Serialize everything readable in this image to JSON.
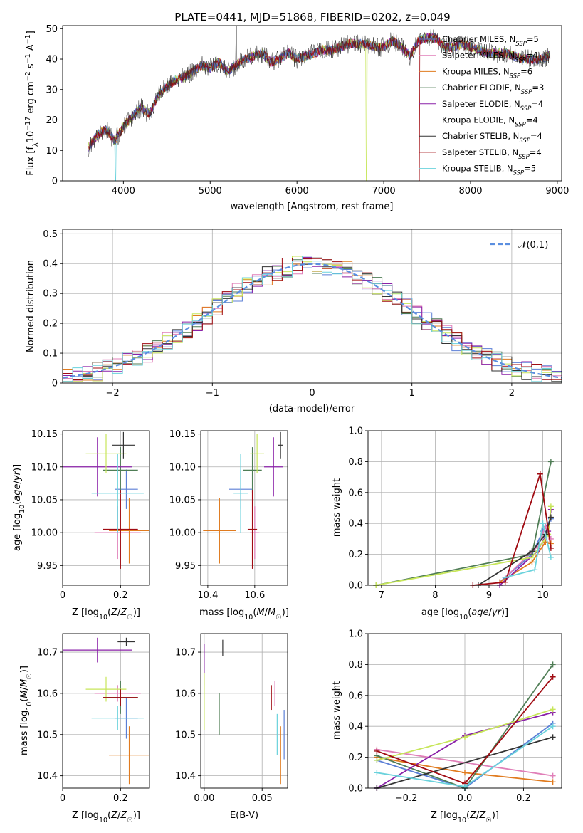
{
  "figure_title": "PLATE=0441, MJD=51868, FIBERID=0202, z=0.049",
  "colors": {
    "Chabrier MILES": "#5b7fd6",
    "Salpeter MILES": "#e07fb8",
    "Kroupa MILES": "#e07b1f",
    "Chabrier ELODIE": "#4f7d55",
    "Salpeter ELODIE": "#8a21a8",
    "Kroupa ELODIE": "#c7e65a",
    "Chabrier STELIB": "#333333",
    "Salpeter STELIB": "#a00b12",
    "Kroupa STELIB": "#6ad2dc",
    "normal": "#5b8fe0"
  },
  "chart_data": [
    {
      "id": "spectrum",
      "type": "line",
      "xlabel": "wavelength [Angstrom, rest frame]",
      "ylabel": "Flux [f_λ 10^-17 erg cm^-2 s^-1 A^-1]",
      "xlim": [
        3300,
        9050
      ],
      "ylim": [
        0,
        51
      ],
      "xticks": [
        4000,
        5000,
        6000,
        7000,
        8000,
        9000
      ],
      "yticks": [
        0,
        10,
        20,
        30,
        40,
        50
      ],
      "grid": false,
      "legend_position": "right",
      "legend": [
        {
          "base": "Chabrier MILES, N",
          "sub": "SSP",
          "tail": "=5"
        },
        {
          "base": "Salpeter MILES, N",
          "sub": "SSP",
          "tail": "=4"
        },
        {
          "base": "Kroupa MILES, N",
          "sub": "SSP",
          "tail": "=6"
        },
        {
          "base": "Chabrier ELODIE, N",
          "sub": "SSP",
          "tail": "=3"
        },
        {
          "base": "Salpeter ELODIE, N",
          "sub": "SSP",
          "tail": "=4"
        },
        {
          "base": "Kroupa ELODIE, N",
          "sub": "SSP",
          "tail": "=4"
        },
        {
          "base": "Chabrier STELIB, N",
          "sub": "SSP",
          "tail": "=4"
        },
        {
          "base": "Salpeter STELIB, N",
          "sub": "SSP",
          "tail": "=4"
        },
        {
          "base": "Kroupa STELIB, N",
          "sub": "SSP",
          "tail": "=5"
        }
      ],
      "continuum": {
        "x": [
          3600,
          3700,
          3800,
          3900,
          4000,
          4100,
          4200,
          4300,
          4400,
          4500,
          4600,
          4700,
          4800,
          4900,
          5000,
          5100,
          5200,
          5300,
          5400,
          5500,
          5600,
          5700,
          5800,
          5900,
          6000,
          6100,
          6200,
          6300,
          6400,
          6500,
          6600,
          6700,
          6800,
          6900,
          7000,
          7100,
          7200,
          7300,
          7400,
          7500,
          7600,
          7700,
          7800,
          7900,
          8000,
          8100,
          8200,
          8300,
          8400,
          8500,
          8600,
          8700,
          8800,
          8900
        ],
        "y": [
          11,
          15,
          17,
          13,
          18,
          21,
          24,
          22,
          28,
          31,
          33,
          34,
          36,
          38,
          37,
          39,
          36,
          38,
          40,
          41,
          42,
          39,
          40,
          42,
          40,
          41,
          42,
          43,
          43,
          44,
          45,
          45,
          45,
          44,
          44,
          46,
          44,
          41,
          46,
          47,
          47,
          44,
          44,
          45,
          44,
          43,
          42,
          42,
          42,
          41,
          40,
          40,
          40,
          41
        ]
      },
      "model_drop_wavelengths": [
        3910,
        6800,
        7410
      ]
    },
    {
      "id": "residuals",
      "type": "histogram",
      "xlabel": "(data-model)/error",
      "ylabel": "Normed distribution",
      "xlim": [
        -2.5,
        2.5
      ],
      "ylim": [
        0,
        0.515
      ],
      "xticks": [
        -2,
        -1,
        0,
        1,
        2
      ],
      "xtick_labels": [
        "−2",
        "−1",
        "0",
        "1",
        "2"
      ],
      "yticks": [
        0,
        0.1,
        0.2,
        0.3,
        0.4,
        0.5
      ],
      "grid": true,
      "bin_width": 0.1,
      "legend": [
        {
          "label": "𝒩(0,1)",
          "style": "dashed"
        }
      ],
      "legend_position": "top-right"
    },
    {
      "id": "age-vs-Z",
      "type": "errorbar",
      "xlabel": "Z [log10(Z/Z☉)]",
      "ylabel": "age [log10(age/yr)]",
      "xlim": [
        0,
        0.3
      ],
      "ylim": [
        9.92,
        10.155
      ],
      "xticks": [
        0,
        0.2
      ],
      "yticks": [
        9.95,
        10.0,
        10.05,
        10.1,
        10.15
      ],
      "grid": true,
      "points": [
        {
          "model": "Chabrier MILES",
          "x": 0.22,
          "xerr": 0.04,
          "y": 10.066,
          "yerr": 0.03
        },
        {
          "model": "Salpeter MILES",
          "x": 0.19,
          "xerr": 0.08,
          "y": 10.0,
          "yerr": 0.04
        },
        {
          "model": "Kroupa MILES",
          "x": 0.23,
          "xerr": 0.07,
          "y": 10.003,
          "yerr": 0.05
        },
        {
          "model": "Chabrier ELODIE",
          "x": 0.2,
          "xerr": 0.06,
          "y": 10.095,
          "yerr": 0.035
        },
        {
          "model": "Salpeter ELODIE",
          "x": 0.12,
          "xerr": 0.12,
          "y": 10.1,
          "yerr": 0.045
        },
        {
          "model": "Kroupa ELODIE",
          "x": 0.15,
          "xerr": 0.07,
          "y": 10.12,
          "yerr": 0.03
        },
        {
          "model": "Chabrier STELIB",
          "x": 0.21,
          "xerr": 0.04,
          "y": 10.133,
          "yerr": 0.02
        },
        {
          "model": "Salpeter STELIB",
          "x": 0.2,
          "xerr": 0.06,
          "y": 10.005,
          "yerr": 0.06
        },
        {
          "model": "Kroupa STELIB",
          "x": 0.19,
          "xerr": 0.09,
          "y": 10.06,
          "yerr": 0.06
        }
      ]
    },
    {
      "id": "age-vs-mass",
      "type": "errorbar",
      "xlabel": "mass [log10(M/M☉)]",
      "ylabel": "",
      "xlim": [
        10.37,
        10.74
      ],
      "ylim": [
        9.92,
        10.155
      ],
      "xticks": [
        10.4,
        10.6
      ],
      "yticks": [
        9.95,
        10.0,
        10.05,
        10.1,
        10.15
      ],
      "grid": true,
      "points": [
        {
          "model": "Chabrier MILES",
          "x": 10.54,
          "xerr": 0.05,
          "y": 10.066,
          "yerr": 0.03
        },
        {
          "model": "Salpeter MILES",
          "x": 10.6,
          "xerr": 0.02,
          "y": 10.0,
          "yerr": 0.04
        },
        {
          "model": "Kroupa MILES",
          "x": 10.45,
          "xerr": 0.07,
          "y": 10.003,
          "yerr": 0.05
        },
        {
          "model": "Chabrier ELODIE",
          "x": 10.59,
          "xerr": 0.04,
          "y": 10.095,
          "yerr": 0.035
        },
        {
          "model": "Salpeter ELODIE",
          "x": 10.68,
          "xerr": 0.04,
          "y": 10.1,
          "yerr": 0.045
        },
        {
          "model": "Kroupa ELODIE",
          "x": 10.61,
          "xerr": 0.03,
          "y": 10.12,
          "yerr": 0.03
        },
        {
          "model": "Chabrier STELIB",
          "x": 10.71,
          "xerr": 0.01,
          "y": 10.133,
          "yerr": 0.02
        },
        {
          "model": "Salpeter STELIB",
          "x": 10.59,
          "xerr": 0.02,
          "y": 10.005,
          "yerr": 0.06
        },
        {
          "model": "Kroupa STELIB",
          "x": 10.54,
          "xerr": 0.03,
          "y": 10.06,
          "yerr": 0.06
        }
      ]
    },
    {
      "id": "mass-weight-vs-age",
      "type": "line",
      "xlabel": "age [log10(age/yr)]",
      "ylabel": "mass weight",
      "xlim": [
        6.75,
        10.35
      ],
      "ylim": [
        0,
        1
      ],
      "xticks": [
        7,
        8,
        9,
        10
      ],
      "yticks": [
        0,
        0.2,
        0.4,
        0.6,
        0.8,
        1.0
      ],
      "grid": true,
      "series": [
        {
          "model": "Chabrier MILES",
          "x": [
            9.2,
            9.8,
            10.0,
            10.15
          ],
          "y": [
            0.02,
            0.2,
            0.35,
            0.43
          ]
        },
        {
          "model": "Salpeter MILES",
          "x": [
            9.3,
            9.9,
            10.05,
            10.15
          ],
          "y": [
            0.05,
            0.25,
            0.38,
            0.3
          ]
        },
        {
          "model": "Kroupa MILES",
          "x": [
            9.2,
            9.8,
            10.05,
            10.15
          ],
          "y": [
            0.02,
            0.15,
            0.28,
            0.27
          ]
        },
        {
          "model": "Chabrier ELODIE",
          "x": [
            6.9,
            9.8,
            10.15
          ],
          "y": [
            0.0,
            0.2,
            0.8
          ]
        },
        {
          "model": "Salpeter ELODIE",
          "x": [
            9.2,
            9.9,
            10.1,
            10.15
          ],
          "y": [
            0.0,
            0.22,
            0.35,
            0.49
          ]
        },
        {
          "model": "Kroupa ELODIE",
          "x": [
            6.9,
            9.8,
            10.1,
            10.15
          ],
          "y": [
            0.0,
            0.18,
            0.33,
            0.51
          ]
        },
        {
          "model": "Chabrier STELIB",
          "x": [
            8.8,
            9.8,
            10.05,
            10.15
          ],
          "y": [
            0.0,
            0.22,
            0.33,
            0.44
          ]
        },
        {
          "model": "Salpeter STELIB",
          "x": [
            8.7,
            9.3,
            9.95,
            10.15
          ],
          "y": [
            0.0,
            0.02,
            0.72,
            0.24
          ]
        },
        {
          "model": "Kroupa STELIB",
          "x": [
            9.3,
            9.85,
            10.0,
            10.15
          ],
          "y": [
            0.05,
            0.1,
            0.4,
            0.18
          ]
        }
      ]
    },
    {
      "id": "mass-vs-Z",
      "type": "errorbar",
      "xlabel": "Z [log10(Z/Z☉)]",
      "ylabel": "mass [log10(M/M☉)]",
      "xlim": [
        0,
        0.3
      ],
      "ylim": [
        10.37,
        10.745
      ],
      "xticks": [
        0,
        0.2
      ],
      "yticks": [
        10.4,
        10.5,
        10.6,
        10.7
      ],
      "grid": true,
      "points": [
        {
          "model": "Chabrier MILES",
          "x": 0.22,
          "xerr": 0.04,
          "y": 10.54,
          "yerr": 0.05
        },
        {
          "model": "Salpeter MILES",
          "x": 0.19,
          "xerr": 0.08,
          "y": 10.6,
          "yerr": 0.02
        },
        {
          "model": "Kroupa MILES",
          "x": 0.23,
          "xerr": 0.07,
          "y": 10.45,
          "yerr": 0.07
        },
        {
          "model": "Chabrier ELODIE",
          "x": 0.2,
          "xerr": 0.06,
          "y": 10.59,
          "yerr": 0.04
        },
        {
          "model": "Salpeter ELODIE",
          "x": 0.12,
          "xerr": 0.12,
          "y": 10.705,
          "yerr": 0.03
        },
        {
          "model": "Kroupa ELODIE",
          "x": 0.15,
          "xerr": 0.07,
          "y": 10.61,
          "yerr": 0.03
        },
        {
          "model": "Chabrier STELIB",
          "x": 0.22,
          "xerr": 0.03,
          "y": 10.725,
          "yerr": 0.01
        },
        {
          "model": "Salpeter STELIB",
          "x": 0.2,
          "xerr": 0.06,
          "y": 10.59,
          "yerr": 0.02
        },
        {
          "model": "Kroupa STELIB",
          "x": 0.19,
          "xerr": 0.09,
          "y": 10.54,
          "yerr": 0.03
        }
      ]
    },
    {
      "id": "mass-vs-ebv",
      "type": "errorbar",
      "xlabel": "E(B-V)",
      "ylabel": "",
      "xlim": [
        -0.003,
        0.072
      ],
      "ylim": [
        10.37,
        10.745
      ],
      "xticks": [
        0,
        0.05
      ],
      "xtick_labels": [
        "0.00",
        "0.05"
      ],
      "yticks": [
        10.4,
        10.5,
        10.6,
        10.7
      ],
      "grid": true,
      "points": [
        {
          "model": "Chabrier MILES",
          "x": 0.069,
          "xerr": 0,
          "y": 10.5,
          "yerr": 0.06
        },
        {
          "model": "Salpeter MILES",
          "x": 0.061,
          "xerr": 0,
          "y": 10.6,
          "yerr": 0.03
        },
        {
          "model": "Kroupa MILES",
          "x": 0.066,
          "xerr": 0,
          "y": 10.45,
          "yerr": 0.07
        },
        {
          "model": "Chabrier ELODIE",
          "x": 0.013,
          "xerr": 0,
          "y": 10.55,
          "yerr": 0.05
        },
        {
          "model": "Salpeter ELODIE",
          "x": 0.0,
          "xerr": 0,
          "y": 10.67,
          "yerr": 0.05
        },
        {
          "model": "Kroupa ELODIE",
          "x": 0.0,
          "xerr": 0,
          "y": 10.58,
          "yerr": 0.07
        },
        {
          "model": "Chabrier STELIB",
          "x": 0.016,
          "xerr": 0,
          "y": 10.71,
          "yerr": 0.02
        },
        {
          "model": "Salpeter STELIB",
          "x": 0.058,
          "xerr": 0,
          "y": 10.59,
          "yerr": 0.03
        },
        {
          "model": "Kroupa STELIB",
          "x": 0.063,
          "xerr": 0,
          "y": 10.5,
          "yerr": 0.05
        }
      ]
    },
    {
      "id": "mass-weight-vs-Z",
      "type": "line",
      "xlabel": "Z [log10(Z/Z☉)]",
      "ylabel": "mass weight",
      "xlim": [
        -0.33,
        0.33
      ],
      "ylim": [
        0,
        1
      ],
      "xticks": [
        -0.2,
        0.0,
        0.2
      ],
      "xtick_labels": [
        "−0.2",
        "0.0",
        "0.2"
      ],
      "yticks": [
        0,
        0.2,
        0.4,
        0.6,
        0.8,
        1.0
      ],
      "grid": true,
      "series": [
        {
          "model": "Chabrier MILES",
          "x": [
            -0.3,
            0.0,
            0.3
          ],
          "y": [
            0.18,
            0.0,
            0.42
          ]
        },
        {
          "model": "Salpeter MILES",
          "x": [
            -0.3,
            0.3
          ],
          "y": [
            0.25,
            0.08
          ]
        },
        {
          "model": "Kroupa MILES",
          "x": [
            -0.3,
            0.0,
            0.3
          ],
          "y": [
            0.2,
            0.1,
            0.04
          ]
        },
        {
          "model": "Chabrier ELODIE",
          "x": [
            -0.3,
            0.0,
            0.3
          ],
          "y": [
            0.21,
            0.0,
            0.8
          ]
        },
        {
          "model": "Salpeter ELODIE",
          "x": [
            -0.3,
            0.0,
            0.3
          ],
          "y": [
            0.0,
            0.34,
            0.49
          ]
        },
        {
          "model": "Kroupa ELODIE",
          "x": [
            -0.3,
            0.0,
            0.3
          ],
          "y": [
            0.18,
            0.33,
            0.51
          ]
        },
        {
          "model": "Chabrier STELIB",
          "x": [
            -0.3,
            0.3
          ],
          "y": [
            0.0,
            0.33
          ]
        },
        {
          "model": "Salpeter STELIB",
          "x": [
            -0.3,
            0.0,
            0.3
          ],
          "y": [
            0.24,
            0.03,
            0.72
          ]
        },
        {
          "model": "Kroupa STELIB",
          "x": [
            -0.3,
            0.0,
            0.3
          ],
          "y": [
            0.1,
            0.01,
            0.4
          ]
        }
      ]
    }
  ]
}
